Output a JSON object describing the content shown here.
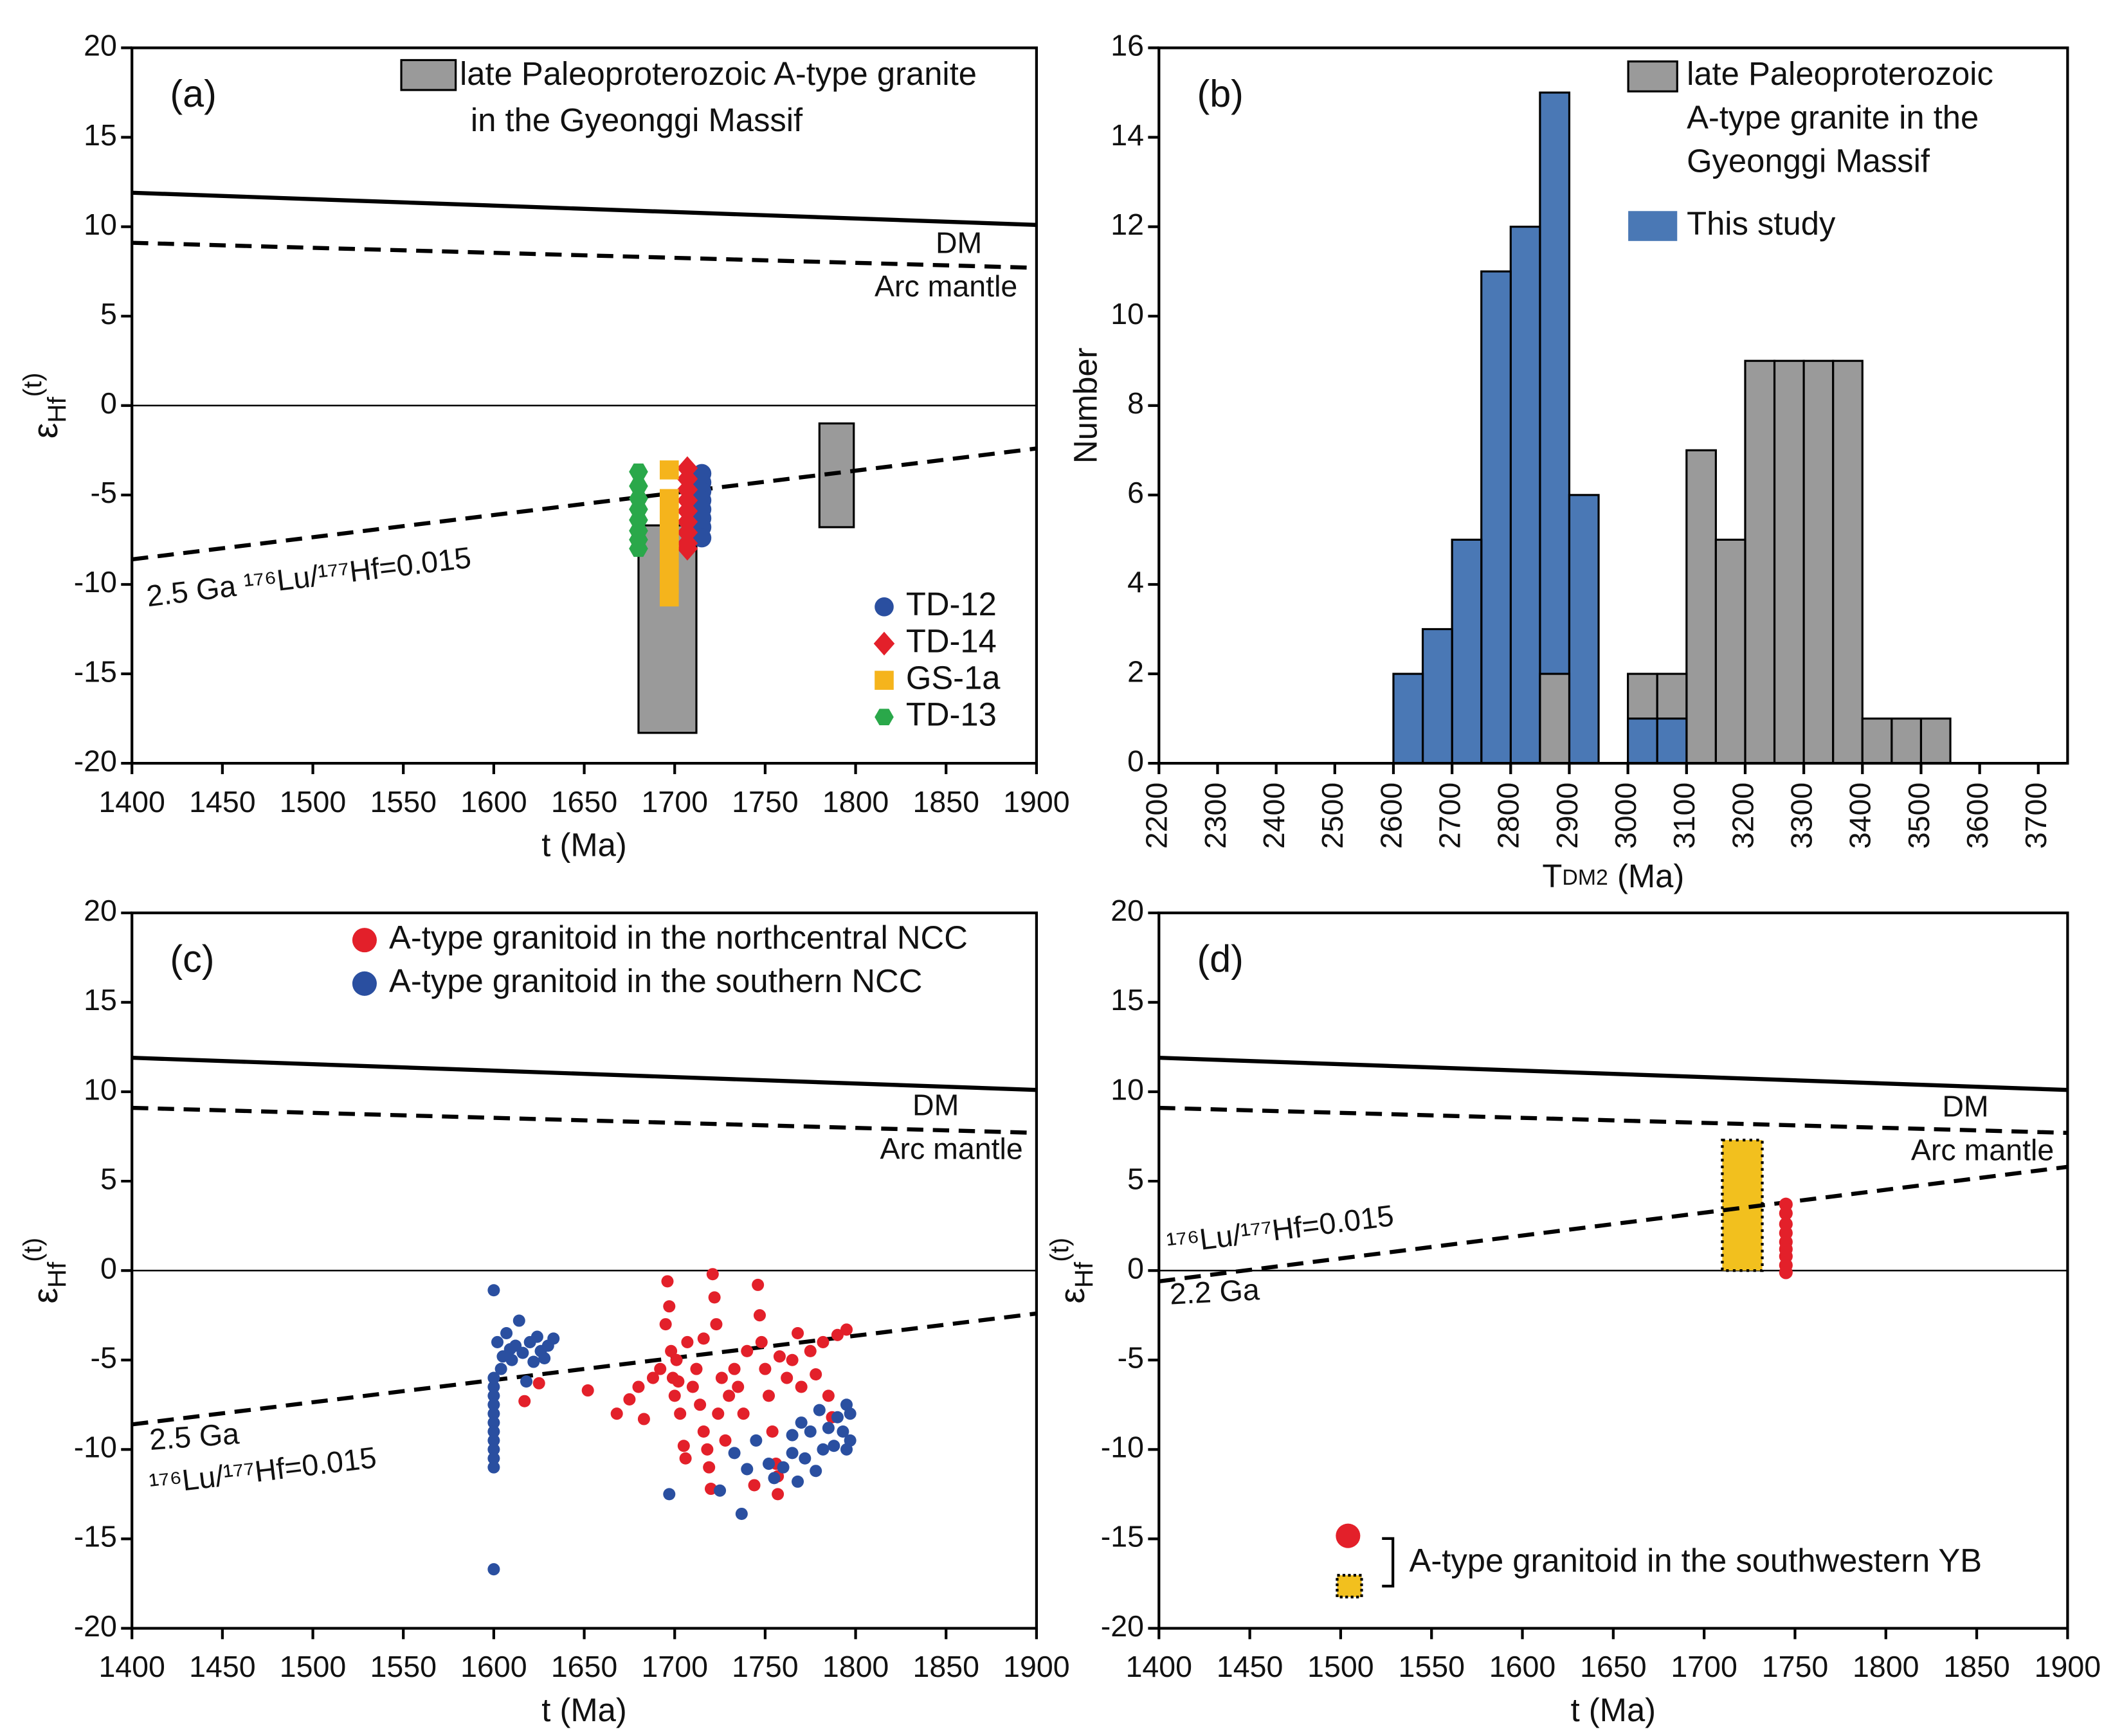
{
  "chart_data": [
    {
      "type": "scatter",
      "label": "(a)",
      "xlabel": "t (Ma)",
      "ylabel": [
        "ε",
        "Hf",
        "(t)"
      ],
      "xlim": [
        1400,
        1900
      ],
      "xticks": [
        1400,
        1450,
        1500,
        1550,
        1600,
        1650,
        1700,
        1750,
        1800,
        1850,
        1900
      ],
      "ylim": [
        -20,
        20
      ],
      "yticks": [
        -20,
        -15,
        -10,
        -5,
        0,
        5,
        10,
        15,
        20
      ],
      "zero_line": true,
      "lines": [
        {
          "name": [
            "DM"
          ],
          "x": [
            1400,
            1900
          ],
          "values": [
            11.9,
            10.1
          ],
          "dash": false
        },
        {
          "name": [
            "Arc mantle"
          ],
          "x": [
            1400,
            1900
          ],
          "values": [
            9.1,
            7.7
          ],
          "dash": true
        },
        {
          "name": [
            "2.5 Ga ¹⁷⁶Lu/¹⁷⁷Hf=0.015"
          ],
          "x": [
            1400,
            1900
          ],
          "values": [
            -8.6,
            -2.4
          ],
          "dash": true
        }
      ],
      "boxes": {
        "name": [
          "late Paleoproterozoic A-type granite",
          "in the Gyeonggi Massif"
        ],
        "color": "#9a9a9a",
        "style": "solid",
        "items": [
          {
            "x": [
              1680,
              1712
            ],
            "y": [
              -18.3,
              -6.7
            ]
          },
          {
            "x": [
              1780,
              1799
            ],
            "y": [
              -6.8,
              -1.0
            ]
          }
        ]
      },
      "series": [
        {
          "name": "TD-12",
          "color": "#2a4fa0",
          "marker": "circle",
          "x": [
            1715,
            1715,
            1715,
            1715,
            1715,
            1715,
            1715,
            1715
          ],
          "values": [
            -3.8,
            -4.3,
            -4.8,
            -5.3,
            -5.8,
            -6.3,
            -6.8,
            -7.4
          ]
        },
        {
          "name": "TD-14",
          "color": "#e3202a",
          "marker": "diamond",
          "x": [
            1707,
            1707,
            1707,
            1707,
            1707,
            1707,
            1707,
            1707,
            1707
          ],
          "values": [
            -3.5,
            -4.1,
            -4.7,
            -5.3,
            -5.9,
            -6.5,
            -7.1,
            -7.7,
            -8.0
          ]
        },
        {
          "name": "GS-1a",
          "color": "#f5b41c",
          "marker": "square",
          "x": [
            1697,
            1697,
            1697,
            1697,
            1697,
            1697,
            1697,
            1697,
            1697,
            1697,
            1697
          ],
          "values": [
            -3.6,
            -5.2,
            -5.8,
            -6.4,
            -7.0,
            -7.5,
            -8.0,
            -8.6,
            -9.3,
            -10.0,
            -10.7
          ]
        },
        {
          "name": "TD-13",
          "color": "#2aa84a",
          "marker": "hexagon",
          "x": [
            1680,
            1680,
            1680,
            1680,
            1680,
            1680,
            1680,
            1680
          ],
          "values": [
            -3.7,
            -4.5,
            -5.2,
            -5.8,
            -6.4,
            -7.0,
            -7.5,
            -8.0
          ]
        }
      ],
      "legend": "lower right"
    },
    {
      "type": "histogram",
      "label": "(b)",
      "xlabel": [
        "T",
        "DM2",
        " (Ma)"
      ],
      "ylabel": "Number",
      "xlim": [
        2200,
        3750
      ],
      "xticks": [
        2200,
        2300,
        2400,
        2500,
        2600,
        2700,
        2800,
        2900,
        3000,
        3100,
        3200,
        3300,
        3400,
        3500,
        3600,
        3700
      ],
      "ylim": [
        0,
        16
      ],
      "yticks": [
        0,
        2,
        4,
        6,
        8,
        10,
        12,
        14,
        16
      ],
      "series": [
        {
          "name": [
            "late Paleoproterozoic",
            "A-type granite in the",
            "Gyeonggi Massif"
          ],
          "color": "#9a9a9a",
          "bins": [
            2850,
            2900,
            2950,
            3000,
            3050,
            3100,
            3150,
            3200,
            3250,
            3300,
            3350,
            3400,
            3450,
            3500,
            3550
          ],
          "values": [
            2,
            0,
            0,
            2,
            2,
            7,
            5,
            9,
            9,
            9,
            9,
            1,
            1,
            1
          ]
        },
        {
          "name": [
            "This study"
          ],
          "color": "#4a78b5",
          "bins": [
            2600,
            2650,
            2700,
            2750,
            2800,
            2850,
            2900,
            2950,
            3000,
            3050,
            3100
          ],
          "values": [
            2,
            3,
            5,
            11,
            12,
            15,
            6,
            0,
            1,
            1
          ]
        }
      ],
      "legend": "upper right"
    },
    {
      "type": "scatter",
      "label": "(c)",
      "xlabel": "t (Ma)",
      "ylabel": [
        "ε",
        "Hf",
        "(t)"
      ],
      "xlim": [
        1400,
        1900
      ],
      "xticks": [
        1400,
        1450,
        1500,
        1550,
        1600,
        1650,
        1700,
        1750,
        1800,
        1850,
        1900
      ],
      "ylim": [
        -20,
        20
      ],
      "yticks": [
        -20,
        -15,
        -10,
        -5,
        0,
        5,
        10,
        15,
        20
      ],
      "zero_line": true,
      "lines": [
        {
          "name": [
            "DM"
          ],
          "x": [
            1400,
            1900
          ],
          "values": [
            11.9,
            10.1
          ],
          "dash": false
        },
        {
          "name": [
            "Arc mantle"
          ],
          "x": [
            1400,
            1900
          ],
          "values": [
            9.1,
            7.7
          ],
          "dash": true
        },
        {
          "name": [
            "2.5 Ga",
            "¹⁷⁶Lu/¹⁷⁷Hf=0.015"
          ],
          "x": [
            1400,
            1900
          ],
          "values": [
            -8.6,
            -2.4
          ],
          "dash": true
        }
      ],
      "series": [
        {
          "name": "A-type granitoid in the northcentral NCC",
          "color": "#e3202a",
          "marker": "circle",
          "x": [
            1617,
            1625,
            1652,
            1668,
            1675,
            1680,
            1683,
            1688,
            1692,
            1695,
            1696,
            1697,
            1698,
            1699,
            1700,
            1701,
            1703,
            1705,
            1706,
            1707,
            1710,
            1712,
            1714,
            1716,
            1718,
            1719,
            1720,
            1721,
            1722,
            1723,
            1724,
            1726,
            1728,
            1730,
            1733,
            1735,
            1738,
            1740,
            1744,
            1746,
            1747,
            1748,
            1750,
            1752,
            1754,
            1756,
            1757,
            1758,
            1762,
            1765,
            1768,
            1770,
            1775,
            1778,
            1782,
            1785,
            1790,
            1795,
            1787,
            1757,
            1702,
            1716
          ],
          "values": [
            -7.3,
            -6.3,
            -6.7,
            -8.0,
            -7.2,
            -6.5,
            -8.3,
            -6,
            -5.5,
            -3,
            -0.6,
            -2,
            -4.5,
            -6,
            -7,
            -5,
            -8,
            -9.8,
            -10.5,
            -4,
            -6.5,
            -5.5,
            -7.5,
            -9,
            -10,
            -11,
            -12.2,
            -0.2,
            -1.5,
            -3,
            -8,
            -6,
            -9.5,
            -7,
            -5.5,
            -6.5,
            -8,
            -4.5,
            -12,
            -0.8,
            -2.5,
            -4,
            -5.5,
            -7,
            -9,
            -10.8,
            -12.5,
            -4.8,
            -6,
            -5,
            -3.5,
            -6.5,
            -4.5,
            -5.8,
            -4,
            -7,
            -3.6,
            -3.3,
            -8.2,
            -11.5,
            -6.2,
            -3.8
          ]
        },
        {
          "name": "A-type granitoid in the southern NCC",
          "color": "#2a4fa0",
          "marker": "circle",
          "x": [
            1600,
            1600,
            1600,
            1600,
            1600,
            1600,
            1600,
            1600,
            1600,
            1600,
            1600,
            1600,
            1600,
            1602,
            1605,
            1607,
            1610,
            1612,
            1614,
            1616,
            1618,
            1620,
            1622,
            1624,
            1626,
            1628,
            1630,
            1633,
            1604,
            1609,
            1697,
            1725,
            1737,
            1733,
            1740,
            1745,
            1752,
            1755,
            1760,
            1765,
            1768,
            1772,
            1775,
            1778,
            1782,
            1785,
            1788,
            1790,
            1793,
            1795,
            1797,
            1797,
            1795,
            1770,
            1780,
            1765
          ],
          "values": [
            -6,
            -6.5,
            -7,
            -7.5,
            -8,
            -8.5,
            -9,
            -9.5,
            -10,
            -10.5,
            -11,
            -1.1,
            -16.7,
            -4,
            -4.8,
            -3.5,
            -5,
            -4.2,
            -2.8,
            -4.6,
            -6.2,
            -4,
            -5.1,
            -3.7,
            -4.5,
            -4.9,
            -4.2,
            -3.8,
            -5.5,
            -4.4,
            -12.5,
            -12.3,
            -13.6,
            -10.2,
            -11.1,
            -9.5,
            -10.8,
            -11.6,
            -11,
            -10.2,
            -11.8,
            -10.5,
            -9,
            -11.2,
            -10,
            -8.8,
            -9.8,
            -8.2,
            -9,
            -7.5,
            -9.5,
            -8,
            -10,
            -8.5,
            -7.8,
            -9.2
          ]
        }
      ],
      "legend": "upper center"
    },
    {
      "type": "scatter",
      "label": "(d)",
      "xlabel": "t (Ma)",
      "ylabel": [
        "ε",
        "Hf",
        "(t)"
      ],
      "xlim": [
        1400,
        1900
      ],
      "xticks": [
        1400,
        1450,
        1500,
        1550,
        1600,
        1650,
        1700,
        1750,
        1800,
        1850,
        1900
      ],
      "ylim": [
        -20,
        20
      ],
      "yticks": [
        -20,
        -15,
        -10,
        -5,
        0,
        5,
        10,
        15,
        20
      ],
      "zero_line": true,
      "lines": [
        {
          "name": [
            "DM"
          ],
          "x": [
            1400,
            1900
          ],
          "values": [
            11.9,
            10.1
          ],
          "dash": false
        },
        {
          "name": [
            "Arc mantle"
          ],
          "x": [
            1400,
            1900
          ],
          "values": [
            9.1,
            7.7
          ],
          "dash": true
        },
        {
          "name": [
            "¹⁷⁶Lu/¹⁷⁷Hf=0.015",
            "2.2 Ga"
          ],
          "x": [
            1400,
            1900
          ],
          "values": [
            -0.6,
            5.8
          ],
          "dash": true
        }
      ],
      "boxes": {
        "color": "#f2c01e",
        "style": "dotted",
        "items": [
          {
            "x": [
              1710,
              1732
            ],
            "y": [
              0,
              7.3
            ]
          }
        ]
      },
      "series": [
        {
          "color": "#e3202a",
          "marker": "circle",
          "x": [
            1745,
            1745,
            1745,
            1745,
            1745,
            1745,
            1745,
            1745,
            1745
          ],
          "values": [
            3.7,
            3.2,
            2.6,
            2.1,
            1.6,
            1.2,
            0.8,
            0.3,
            -0.1
          ]
        }
      ],
      "legend_label": "A-type granitoid in the southwestern YB",
      "legend": "lower right"
    }
  ]
}
